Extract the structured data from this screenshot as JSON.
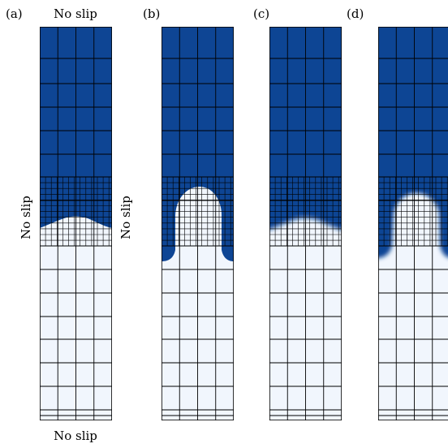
{
  "colors": {
    "heavy_fluid": "#0e4594",
    "light_fluid": "#f1f6fd",
    "grid_line": "#000000"
  },
  "labels": {
    "top_boundary": "No slip",
    "side_boundary_a": "No slip",
    "side_boundary_b": "No slip",
    "bottom_boundary": "No slip"
  },
  "panels": [
    {
      "id": "a",
      "tag": "(a)",
      "interface": "small-bump"
    },
    {
      "id": "b",
      "tag": "(b)",
      "interface": "spike"
    },
    {
      "id": "c",
      "tag": "(c)",
      "interface": "smeared-bump"
    },
    {
      "id": "d",
      "tag": "(d)",
      "interface": "smeared-spike"
    }
  ]
}
